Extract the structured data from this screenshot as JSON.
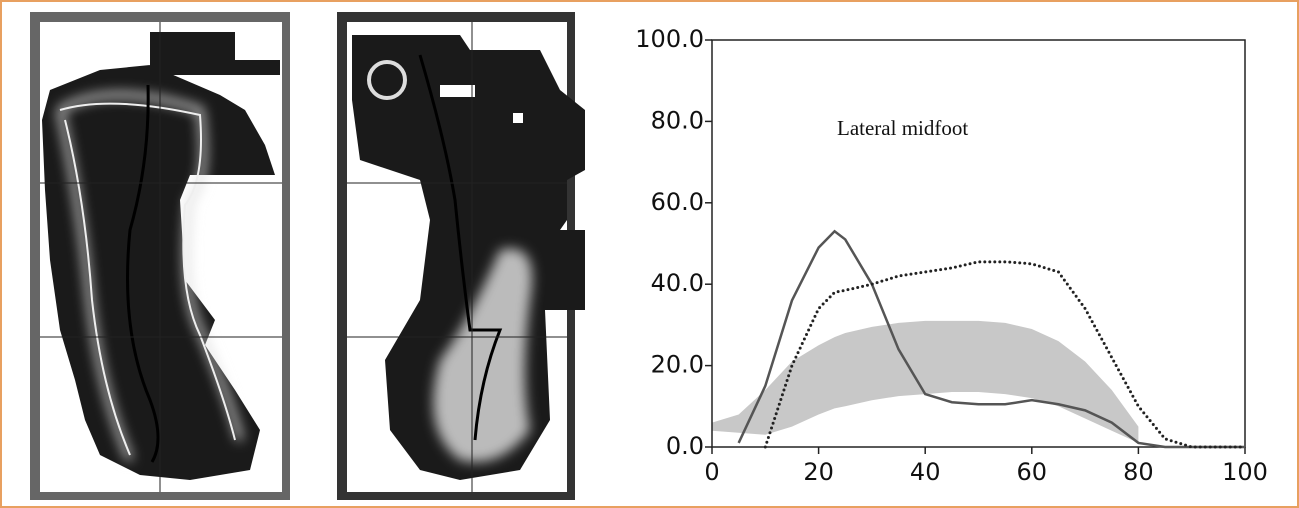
{
  "chart_data": {
    "type": "line",
    "annotation": "Lateral midfoot",
    "x": [
      0,
      5,
      10,
      15,
      20,
      23,
      25,
      30,
      35,
      40,
      45,
      50,
      55,
      60,
      65,
      70,
      75,
      80,
      85,
      90,
      95,
      100
    ],
    "series": [
      {
        "color": "#555555",
        "line_style": "solid",
        "values": [
          null,
          1,
          15,
          36,
          49,
          53,
          51,
          40,
          24,
          13,
          11,
          10.5,
          10.5,
          11.5,
          10.5,
          9,
          6,
          1,
          0,
          0,
          0,
          0
        ]
      },
      {
        "color": "#222222",
        "line_style": "dotted",
        "values": [
          null,
          null,
          0,
          20,
          34,
          38,
          38.5,
          40,
          42,
          43,
          44,
          45.5,
          45.5,
          45,
          43,
          34,
          22,
          10,
          2,
          0,
          0,
          0
        ]
      }
    ],
    "band": {
      "color": "#c8c8c8",
      "upper": [
        6,
        8,
        14,
        21,
        25,
        27,
        28,
        29.5,
        30.5,
        31,
        31,
        31,
        30.5,
        29,
        26,
        21,
        14,
        5,
        null,
        null,
        null,
        null
      ],
      "lower": [
        4,
        3.5,
        3,
        5,
        8,
        9.5,
        10,
        11.5,
        12.5,
        13,
        13.5,
        13.5,
        13,
        12,
        10,
        7,
        4,
        1,
        null,
        null,
        null,
        null
      ]
    },
    "xlim": [
      0,
      100
    ],
    "ylim": [
      0,
      100
    ],
    "xticks": [
      0,
      20,
      40,
      60,
      80,
      100
    ],
    "yticks": [
      {
        "value": 0,
        "label": "0.0"
      },
      {
        "value": 20,
        "label": "20.0"
      },
      {
        "value": 40,
        "label": "40.0"
      },
      {
        "value": 60,
        "label": "60.0"
      },
      {
        "value": 80,
        "label": "80.0"
      },
      {
        "value": 100,
        "label": "100.0"
      }
    ]
  }
}
